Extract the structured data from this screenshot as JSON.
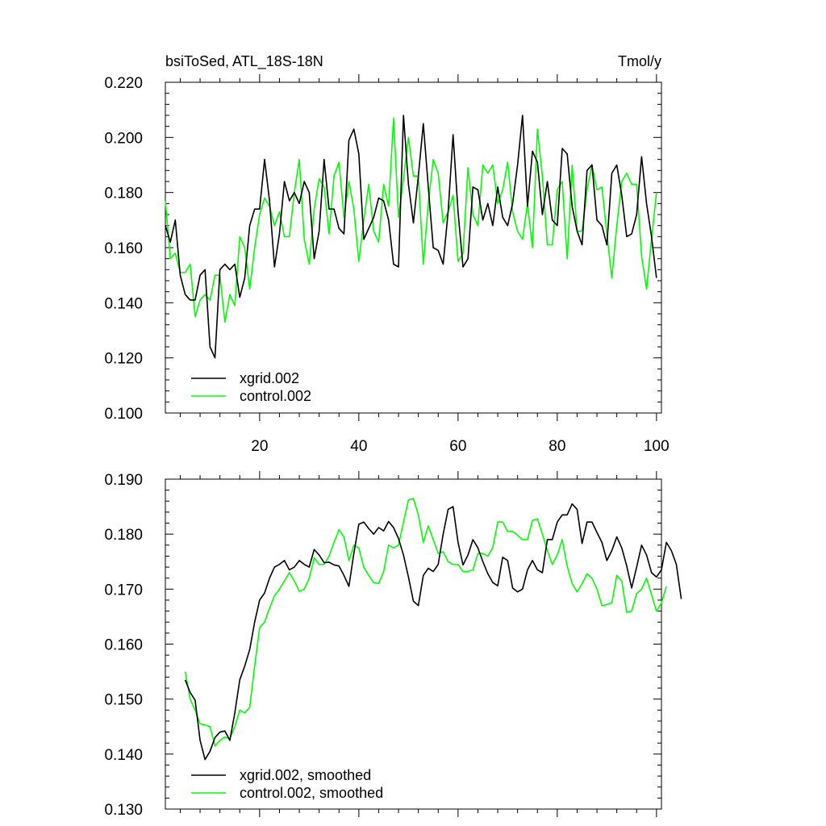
{
  "colors": {
    "series1": "#000000",
    "series2": "#00ff00",
    "axis": "#000000",
    "background": "#ffffff"
  },
  "chart_data": [
    {
      "type": "line",
      "title": "bsiToSed, ATL_18S-18N",
      "units": "Tmol/y",
      "xlim": [
        1,
        101
      ],
      "ylim": [
        0.1,
        0.22
      ],
      "x_ticks": [
        20,
        40,
        60,
        80,
        100
      ],
      "x_tick_labels": [
        "20",
        "40",
        "60",
        "80",
        "100"
      ],
      "y_ticks": [
        0.1,
        0.12,
        0.14,
        0.16,
        0.18,
        0.2,
        0.22
      ],
      "y_tick_labels": [
        "0.100",
        "0.120",
        "0.140",
        "0.160",
        "0.180",
        "0.200",
        "0.220"
      ],
      "legend_position": "bottom-left",
      "x_start": 1,
      "series": [
        {
          "name": "xgrid.002",
          "color": "#000000",
          "values": [
            0.168,
            0.162,
            0.17,
            0.15,
            0.143,
            0.141,
            0.141,
            0.15,
            0.152,
            0.124,
            0.12,
            0.152,
            0.154,
            0.152,
            0.154,
            0.142,
            0.149,
            0.168,
            0.174,
            0.174,
            0.192,
            0.177,
            0.153,
            0.165,
            0.184,
            0.177,
            0.18,
            0.176,
            0.184,
            0.18,
            0.156,
            0.166,
            0.192,
            0.174,
            0.174,
            0.167,
            0.165,
            0.199,
            0.203,
            0.194,
            0.163,
            0.167,
            0.171,
            0.178,
            0.177,
            0.17,
            0.154,
            0.153,
            0.208,
            0.183,
            0.169,
            0.186,
            0.205,
            0.182,
            0.16,
            0.159,
            0.154,
            0.173,
            0.201,
            0.173,
            0.153,
            0.156,
            0.182,
            0.181,
            0.17,
            0.176,
            0.168,
            0.182,
            0.171,
            0.168,
            0.176,
            0.19,
            0.208,
            0.175,
            0.195,
            0.191,
            0.172,
            0.184,
            0.17,
            0.168,
            0.196,
            0.194,
            0.175,
            0.166,
            0.161,
            0.188,
            0.19,
            0.17,
            0.168,
            0.161,
            0.187,
            0.19,
            0.179,
            0.164,
            0.165,
            0.172,
            0.193,
            0.176,
            0.164,
            0.149
          ]
        },
        {
          "name": "control.002",
          "color": "#00ff00",
          "values": [
            0.177,
            0.156,
            0.158,
            0.151,
            0.151,
            0.154,
            0.135,
            0.141,
            0.143,
            0.141,
            0.15,
            0.15,
            0.133,
            0.143,
            0.139,
            0.164,
            0.16,
            0.145,
            0.16,
            0.172,
            0.178,
            0.175,
            0.168,
            0.173,
            0.164,
            0.164,
            0.18,
            0.192,
            0.163,
            0.154,
            0.174,
            0.185,
            0.182,
            0.165,
            0.186,
            0.191,
            0.171,
            0.184,
            0.174,
            0.155,
            0.17,
            0.183,
            0.166,
            0.162,
            0.183,
            0.175,
            0.207,
            0.171,
            0.185,
            0.2,
            0.186,
            0.186,
            0.154,
            0.176,
            0.192,
            0.187,
            0.169,
            0.173,
            0.179,
            0.155,
            0.158,
            0.189,
            0.172,
            0.168,
            0.19,
            0.187,
            0.19,
            0.176,
            0.181,
            0.191,
            0.173,
            0.166,
            0.163,
            0.176,
            0.16,
            0.203,
            0.186,
            0.161,
            0.161,
            0.181,
            0.184,
            0.156,
            0.19,
            0.166,
            0.166,
            0.181,
            0.19,
            0.181,
            0.182,
            0.165,
            0.149,
            0.168,
            0.184,
            0.187,
            0.183,
            0.183,
            0.157,
            0.145,
            0.163,
            0.18
          ]
        }
      ]
    },
    {
      "type": "line",
      "title": "",
      "units": "",
      "xlim": [
        1,
        101
      ],
      "ylim": [
        0.13,
        0.19
      ],
      "x_ticks": [
        20,
        40,
        60,
        80,
        100
      ],
      "x_tick_labels": [
        "",
        "",
        "",
        "",
        ""
      ],
      "y_ticks": [
        0.13,
        0.14,
        0.15,
        0.16,
        0.17,
        0.18,
        0.19
      ],
      "y_tick_labels": [
        "0.130",
        "0.140",
        "0.150",
        "0.160",
        "0.170",
        "0.180",
        "0.190"
      ],
      "legend_position": "bottom-left",
      "x_start": 5,
      "series": [
        {
          "name": "xgrid.002, smoothed",
          "color": "#000000",
          "values": [
            0.1535,
            0.1512,
            0.1498,
            0.1425,
            0.139,
            0.1405,
            0.143,
            0.144,
            0.1442,
            0.1425,
            0.1475,
            0.1535,
            0.156,
            0.159,
            0.164,
            0.168,
            0.1693,
            0.172,
            0.174,
            0.1745,
            0.1752,
            0.1735,
            0.174,
            0.1752,
            0.1745,
            0.174,
            0.1772,
            0.1762,
            0.1748,
            0.1749,
            0.1744,
            0.1742,
            0.1725,
            0.1705,
            0.1765,
            0.1818,
            0.1822,
            0.181,
            0.18,
            0.1812,
            0.1806,
            0.1823,
            0.1812,
            0.1792,
            0.1762,
            0.1722,
            0.1678,
            0.167,
            0.1725,
            0.1738,
            0.1732,
            0.1745,
            0.18,
            0.1845,
            0.185,
            0.1785,
            0.1744,
            0.1762,
            0.179,
            0.1775,
            0.175,
            0.1728,
            0.1712,
            0.1706,
            0.1758,
            0.1752,
            0.1702,
            0.1695,
            0.17,
            0.1735,
            0.1752,
            0.1735,
            0.173,
            0.179,
            0.179,
            0.1822,
            0.1835,
            0.1835,
            0.1855,
            0.1845,
            0.1783,
            0.1822,
            0.1822,
            0.1803,
            0.1785,
            0.1752,
            0.177,
            0.1795,
            0.1775,
            0.1742,
            0.1702,
            0.174,
            0.178,
            0.1762,
            0.173,
            0.1722,
            0.1735,
            0.1785,
            0.177,
            0.1745,
            0.1682
          ]
        },
        {
          "name": "control.002, smoothed",
          "color": "#00ff00",
          "values": [
            0.155,
            0.15,
            0.148,
            0.1455,
            0.1453,
            0.145,
            0.1415,
            0.1425,
            0.1431,
            0.1428,
            0.145,
            0.148,
            0.1475,
            0.1485,
            0.156,
            0.163,
            0.164,
            0.1665,
            0.1688,
            0.17,
            0.1715,
            0.173,
            0.1715,
            0.1696,
            0.17,
            0.172,
            0.1757,
            0.1745,
            0.1745,
            0.176,
            0.1785,
            0.1808,
            0.1795,
            0.1752,
            0.178,
            0.1775,
            0.174,
            0.1725,
            0.1712,
            0.171,
            0.1732,
            0.178,
            0.1775,
            0.178,
            0.1822,
            0.1862,
            0.1865,
            0.1835,
            0.1785,
            0.1815,
            0.179,
            0.1765,
            0.1768,
            0.175,
            0.1745,
            0.1745,
            0.1732,
            0.1732,
            0.1735,
            0.1765,
            0.1765,
            0.176,
            0.1775,
            0.1822,
            0.1822,
            0.1805,
            0.1805,
            0.1798,
            0.179,
            0.179,
            0.1825,
            0.1828,
            0.18,
            0.177,
            0.1745,
            0.1762,
            0.179,
            0.1742,
            0.171,
            0.1695,
            0.171,
            0.1728,
            0.172,
            0.17,
            0.167,
            0.1672,
            0.1675,
            0.1725,
            0.1715,
            0.1658,
            0.166,
            0.1692,
            0.17,
            0.172,
            0.169,
            0.166,
            0.1675,
            0.1705
          ]
        }
      ]
    }
  ]
}
